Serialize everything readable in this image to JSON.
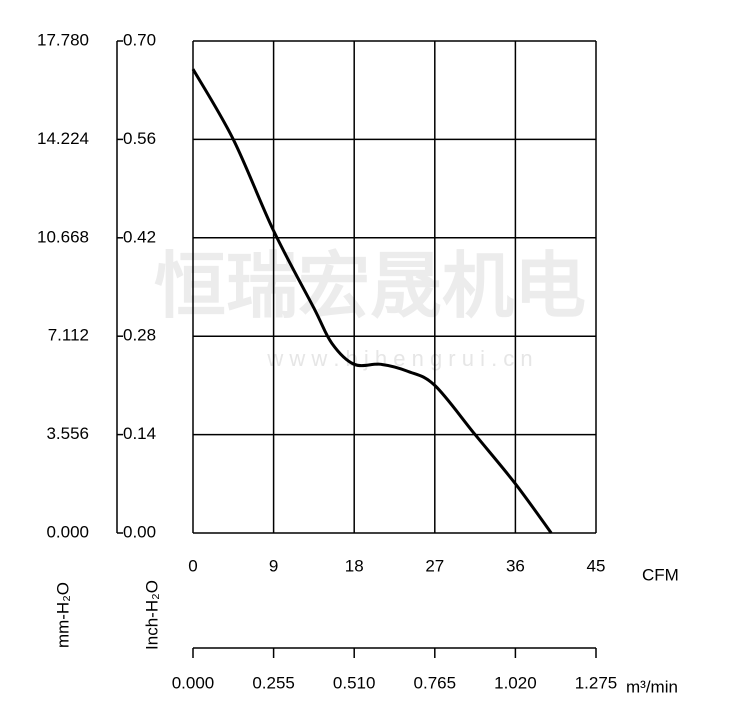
{
  "chart_data": {
    "type": "line",
    "watermark": "恒瑞宏晟机电",
    "watermark_url": "w w w . b j h e n g r u i . c n",
    "x": [
      0,
      4.5,
      9,
      13.5,
      15.5,
      18,
      21,
      24,
      27,
      31.5,
      36,
      40
    ],
    "values": [
      0.66,
      0.56,
      0.43,
      0.32,
      0.27,
      0.24,
      0.24,
      0.23,
      0.21,
      0.14,
      0.07,
      0
    ],
    "color": "#000000",
    "xlim": [
      0,
      45
    ],
    "xticks": [
      0,
      9,
      18,
      27,
      36,
      45
    ],
    "xlabel": "CFM",
    "x2lim": [
      0,
      1.275
    ],
    "x2ticks": [
      {
        "value": 0,
        "label": "0.000"
      },
      0.255,
      {
        "value": 0.51,
        "label": "0.510"
      },
      0.765,
      {
        "value": 1.02,
        "label": "1.020"
      },
      1.275
    ],
    "x2label": "m³/min",
    "ylim": [
      0,
      0.7
    ],
    "yticks": [
      {
        "value": 0,
        "label": "0.00"
      },
      0.14,
      0.28,
      0.42,
      0.56,
      {
        "value": 0.7,
        "label": "0.70"
      }
    ],
    "ylabel": "Inch-H₂O",
    "y2lim": [
      0,
      17.78
    ],
    "y2ticks": [
      {
        "value": 0,
        "label": "0.000"
      },
      3.556,
      7.112,
      10.668,
      14.224,
      {
        "value": 17.78,
        "label": "17.780"
      }
    ],
    "y2label": "mm-H₂O",
    "grid": true
  }
}
